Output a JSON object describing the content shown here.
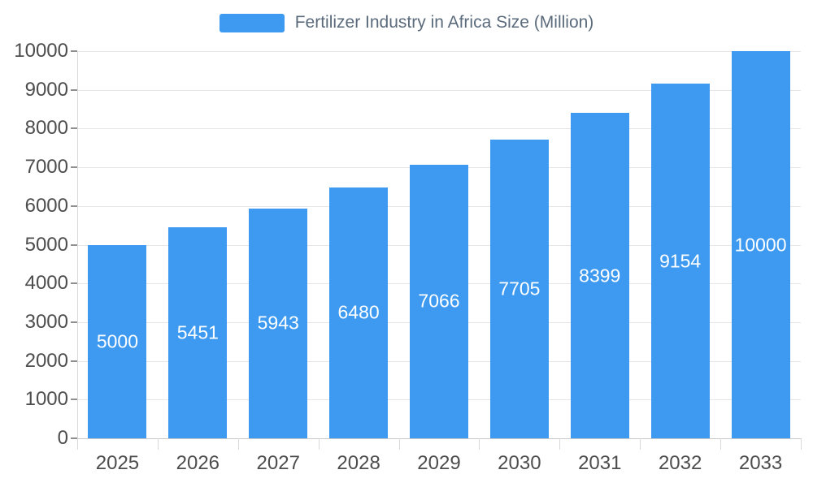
{
  "legend": {
    "label": "Fertilizer Industry in Africa Size (Million)"
  },
  "chart_data": {
    "type": "bar",
    "title": "Fertilizer Industry in Africa Size (Million)",
    "series_name": "Fertilizer Industry in Africa Size (Million)",
    "categories": [
      "2025",
      "2026",
      "2027",
      "2028",
      "2029",
      "2030",
      "2031",
      "2032",
      "2033"
    ],
    "values": [
      5000,
      5451,
      5943,
      6480,
      7066,
      7705,
      8399,
      9154,
      10000
    ],
    "xlabel": "",
    "ylabel": "",
    "ylim": [
      0,
      10000
    ],
    "ytick_step": 1000,
    "grid": true,
    "legend_position": "top",
    "bar_color": "#3d9af0",
    "value_label_color": "#ffffff",
    "axis_label_color": "#4d4d4d",
    "title_color": "#5b6b7c",
    "gridline_color": "#e6e6e6"
  }
}
